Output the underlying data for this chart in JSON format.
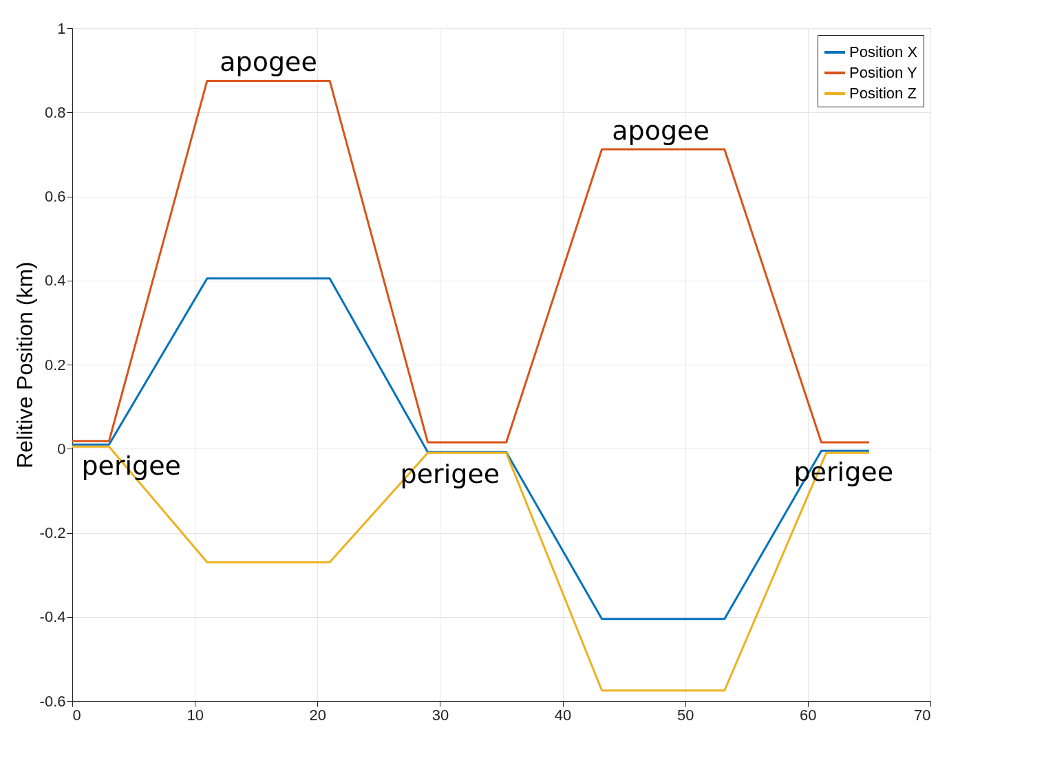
{
  "chart_data": {
    "type": "line",
    "ylabel": "Relitive Position (km)",
    "xlim": [
      0,
      70
    ],
    "xticks": [
      0,
      10,
      20,
      30,
      40,
      50,
      60,
      70
    ],
    "ylim": [
      -0.6,
      1
    ],
    "yticks": [
      -0.6,
      -0.4,
      -0.2,
      0,
      0.2,
      0.4,
      0.6,
      0.8,
      1
    ],
    "grid": true,
    "legend": "top right",
    "line_style": "solid",
    "marker": "none",
    "series": [
      {
        "name": "Position X",
        "color": "#0072bd",
        "x": [
          0,
          3,
          11,
          21,
          29,
          35.4,
          43.2,
          53.2,
          61.1,
          65
        ],
        "values": [
          0.01,
          0.01,
          0.405,
          0.405,
          -0.008,
          -0.008,
          -0.405,
          -0.405,
          -0.005,
          -0.005
        ]
      },
      {
        "name": "Position Y",
        "color": "#d95319",
        "x": [
          0,
          3,
          11,
          21,
          29,
          35.4,
          43.2,
          53.2,
          61.1,
          65
        ],
        "values": [
          0.018,
          0.018,
          0.875,
          0.875,
          0.015,
          0.015,
          0.712,
          0.712,
          0.015,
          0.015
        ]
      },
      {
        "name": "Position Z",
        "color": "#edb120",
        "x": [
          0,
          3,
          11,
          21,
          29,
          35.4,
          43.2,
          53.2,
          61.5,
          65
        ],
        "values": [
          0.005,
          0.005,
          -0.27,
          -0.27,
          -0.01,
          -0.01,
          -0.575,
          -0.575,
          -0.01,
          -0.01
        ]
      }
    ],
    "annotations": [
      {
        "text": "apogee",
        "x": 16,
        "y": 0.875
      },
      {
        "text": "apogee",
        "x": 48,
        "y": 0.712
      },
      {
        "text": "perigee",
        "x": 3,
        "y": 0.01
      },
      {
        "text": "perigee",
        "x": 29,
        "y": -0.01
      },
      {
        "text": "perigee",
        "x": 61.1,
        "y": -0.005
      }
    ]
  }
}
